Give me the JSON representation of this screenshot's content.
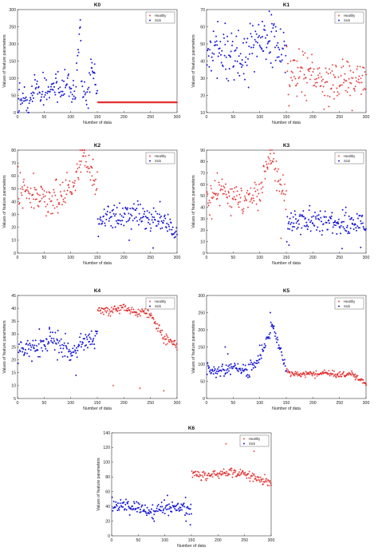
{
  "chart_data": [
    {
      "type": "scatter",
      "title": "K0",
      "xlabel": "Number of data",
      "ylabel": "Values of feature parameters",
      "xlim": [
        0,
        300
      ],
      "ylim": [
        0,
        300
      ],
      "xticks": [
        0,
        50,
        100,
        150,
        200,
        250,
        300
      ],
      "yticks": [
        0,
        50,
        100,
        150,
        200,
        250,
        300
      ],
      "legend_position": "top-right",
      "legend": [
        "Healthy",
        "Sick"
      ],
      "series": [
        {
          "name": "Sick",
          "color": "#1a1adb",
          "marker": "*",
          "x_range": [
            1,
            150
          ],
          "base": 58,
          "spread": 22,
          "outliers": [
            [
              3,
              5
            ],
            [
              28,
              50
            ],
            [
              72,
              100
            ],
            [
              105,
              80
            ],
            [
              118,
              270
            ],
            [
              140,
              130
            ],
            [
              145,
              115
            ]
          ],
          "values_sample": [
            [
              1,
              55
            ],
            [
              10,
              40
            ],
            [
              20,
              30
            ],
            [
              30,
              78
            ],
            [
              40,
              68
            ],
            [
              50,
              72
            ],
            [
              60,
              60
            ],
            [
              70,
              95
            ],
            [
              80,
              55
            ],
            [
              90,
              88
            ],
            [
              100,
              70
            ],
            [
              110,
              60
            ],
            [
              118,
              270
            ],
            [
              120,
              100
            ],
            [
              130,
              55
            ],
            [
              140,
              130
            ],
            [
              150,
              55
            ]
          ]
        },
        {
          "name": "Healthy",
          "color": "#e11a1a",
          "marker": "+",
          "x_range": [
            151,
            300
          ],
          "base": 30,
          "spread": 0,
          "outliers": [],
          "values_sample": [
            [
              151,
              30
            ],
            [
              200,
              30
            ],
            [
              250,
              30
            ],
            [
              300,
              30
            ]
          ]
        }
      ]
    },
    {
      "type": "scatter",
      "title": "K1",
      "xlabel": "Number of data",
      "ylabel": "Values of feature parameters",
      "xlim": [
        0,
        300
      ],
      "ylim": [
        10,
        70
      ],
      "xticks": [
        0,
        50,
        100,
        150,
        200,
        250,
        300
      ],
      "yticks": [
        10,
        20,
        30,
        40,
        50,
        60,
        70
      ],
      "legend_position": "top-right",
      "legend": [
        "Healthy",
        "Sick"
      ],
      "series": [
        {
          "name": "Sick",
          "color": "#1a1adb",
          "marker": "*",
          "x_range": [
            1,
            150
          ],
          "base": 46,
          "spread": 7,
          "outliers": [
            [
              20,
              30
            ],
            [
              35,
              62
            ],
            [
              105,
              63
            ],
            [
              118,
              69
            ],
            [
              122,
              67
            ],
            [
              130,
              60
            ]
          ],
          "values_sample": [
            [
              1,
              44
            ],
            [
              25,
              48
            ],
            [
              50,
              40
            ],
            [
              75,
              45
            ],
            [
              100,
              50
            ],
            [
              125,
              55
            ],
            [
              150,
              44
            ]
          ]
        },
        {
          "name": "Healthy",
          "color": "#e11a1a",
          "marker": "+",
          "x_range": [
            151,
            300
          ],
          "base": 31,
          "spread": 6,
          "outliers": [
            [
              170,
              40
            ],
            [
              185,
              20
            ],
            [
              240,
              18
            ],
            [
              270,
              20
            ]
          ],
          "values_sample": [
            [
              151,
              30
            ],
            [
              175,
              35
            ],
            [
              200,
              32
            ],
            [
              225,
              28
            ],
            [
              250,
              30
            ],
            [
              275,
              28
            ],
            [
              300,
              30
            ]
          ]
        }
      ]
    },
    {
      "type": "scatter",
      "title": "K2",
      "xlabel": "Number of data",
      "ylabel": "Values of feature parameters",
      "xlim": [
        0,
        300
      ],
      "ylim": [
        0,
        80
      ],
      "xticks": [
        0,
        50,
        100,
        150,
        200,
        250,
        300
      ],
      "yticks": [
        0,
        10,
        20,
        30,
        40,
        50,
        60,
        70,
        80
      ],
      "legend_position": "top-right",
      "legend": [
        "Healthy",
        "Sick"
      ],
      "series": [
        {
          "name": "Healthy",
          "color": "#e11a1a",
          "marker": "+",
          "x_range": [
            1,
            150
          ],
          "base": 48,
          "spread": 6,
          "outliers": [
            [
              10,
              35
            ],
            [
              30,
              62
            ],
            [
              118,
              85
            ],
            [
              125,
              78
            ],
            [
              140,
              60
            ]
          ],
          "values_sample": [
            [
              1,
              50
            ],
            [
              25,
              45
            ],
            [
              50,
              42
            ],
            [
              75,
              45
            ],
            [
              100,
              50
            ],
            [
              125,
              78
            ],
            [
              150,
              48
            ]
          ]
        },
        {
          "name": "Sick",
          "color": "#1a1adb",
          "marker": "*",
          "x_range": [
            151,
            300
          ],
          "base": 27,
          "spread": 5,
          "outliers": [
            [
              210,
              10
            ],
            [
              255,
              4
            ],
            [
              268,
              40
            ],
            [
              290,
              15
            ]
          ],
          "values_sample": [
            [
              151,
              25
            ],
            [
              175,
              28
            ],
            [
              200,
              30
            ],
            [
              225,
              30
            ],
            [
              250,
              24
            ],
            [
              275,
              25
            ],
            [
              300,
              17
            ]
          ]
        }
      ]
    },
    {
      "type": "scatter",
      "title": "K3",
      "xlabel": "Number of data",
      "ylabel": "Values of feature parameters",
      "xlim": [
        0,
        300
      ],
      "ylim": [
        0,
        90
      ],
      "xticks": [
        0,
        50,
        100,
        150,
        200,
        250,
        300
      ],
      "yticks": [
        0,
        10,
        20,
        30,
        40,
        50,
        60,
        70,
        80,
        90
      ],
      "legend_position": "top-right",
      "legend": [
        "Healthy",
        "Sick"
      ],
      "series": [
        {
          "name": "Healthy",
          "color": "#e11a1a",
          "marker": "+",
          "x_range": [
            1,
            150
          ],
          "base": 50,
          "spread": 7,
          "outliers": [
            [
              10,
              30
            ],
            [
              20,
              70
            ],
            [
              115,
              75
            ],
            [
              120,
              87
            ],
            [
              140,
              13
            ]
          ],
          "values_sample": [
            [
              1,
              45
            ],
            [
              25,
              55
            ],
            [
              50,
              48
            ],
            [
              75,
              50
            ],
            [
              100,
              52
            ],
            [
              120,
              87
            ],
            [
              150,
              47
            ]
          ]
        },
        {
          "name": "Sick",
          "color": "#1a1adb",
          "marker": "*",
          "x_range": [
            151,
            300
          ],
          "base": 26,
          "spread": 5,
          "outliers": [
            [
              155,
              7
            ],
            [
              255,
              4
            ],
            [
              262,
              40
            ],
            [
              290,
              5
            ]
          ],
          "values_sample": [
            [
              151,
              25
            ],
            [
              175,
              28
            ],
            [
              200,
              30
            ],
            [
              225,
              28
            ],
            [
              250,
              25
            ],
            [
              275,
              27
            ],
            [
              300,
              25
            ]
          ]
        }
      ]
    },
    {
      "type": "scatter",
      "title": "K4",
      "xlabel": "Number of data",
      "ylabel": "Values of feature parameters",
      "xlim": [
        0,
        300
      ],
      "ylim": [
        5,
        45
      ],
      "xticks": [
        0,
        50,
        100,
        150,
        200,
        250,
        300
      ],
      "yticks": [
        5,
        10,
        15,
        20,
        25,
        30,
        35,
        40,
        45
      ],
      "legend_position": "top-right",
      "legend": [
        "Healthy",
        "Sick"
      ],
      "series": [
        {
          "name": "Sick",
          "color": "#1a1adb",
          "marker": "*",
          "x_range": [
            1,
            150
          ],
          "base": 25,
          "spread": 2,
          "outliers": [
            [
              60,
              32
            ],
            [
              75,
              20
            ],
            [
              100,
              20
            ],
            [
              110,
              14
            ],
            [
              135,
              30
            ]
          ],
          "values_sample": [
            [
              1,
              24
            ],
            [
              25,
              24
            ],
            [
              50,
              27
            ],
            [
              75,
              27
            ],
            [
              100,
              23
            ],
            [
              125,
              28
            ],
            [
              150,
              28
            ]
          ]
        },
        {
          "name": "Healthy",
          "color": "#e11a1a",
          "marker": "+",
          "x_range": [
            151,
            300
          ],
          "base": 39,
          "spread": 1,
          "outliers": [
            [
              180,
              10
            ],
            [
              230,
              9
            ],
            [
              275,
              8
            ],
            [
              280,
              30
            ],
            [
              295,
              26
            ]
          ],
          "values_sample": [
            [
              151,
              40
            ],
            [
              175,
              39
            ],
            [
              200,
              40
            ],
            [
              225,
              39
            ],
            [
              250,
              38
            ],
            [
              275,
              28
            ],
            [
              300,
              26
            ]
          ]
        }
      ]
    },
    {
      "type": "scatter",
      "title": "K5",
      "xlabel": "Number of data",
      "ylabel": "Values of feature parameters",
      "xlim": [
        0,
        300
      ],
      "ylim": [
        0,
        300
      ],
      "xticks": [
        0,
        50,
        100,
        150,
        200,
        250,
        300
      ],
      "yticks": [
        0,
        50,
        100,
        150,
        200,
        250,
        300
      ],
      "legend_position": "top-right",
      "legend": [
        "Healthy",
        "Sick"
      ],
      "series": [
        {
          "name": "Sick",
          "color": "#1a1adb",
          "marker": "*",
          "x_range": [
            1,
            150
          ],
          "base": 85,
          "spread": 10,
          "outliers": [
            [
              35,
              150
            ],
            [
              40,
              130
            ],
            [
              100,
              155
            ],
            [
              120,
              250
            ],
            [
              125,
              210
            ]
          ],
          "values_sample": [
            [
              1,
              85
            ],
            [
              25,
              80
            ],
            [
              50,
              90
            ],
            [
              75,
              78
            ],
            [
              100,
              120
            ],
            [
              125,
              210
            ],
            [
              150,
              80
            ]
          ]
        },
        {
          "name": "Healthy",
          "color": "#e11a1a",
          "marker": "+",
          "x_range": [
            151,
            300
          ],
          "base": 75,
          "spread": 4,
          "outliers": [
            [
              280,
              55
            ],
            [
              300,
              42
            ]
          ],
          "values_sample": [
            [
              151,
              75
            ],
            [
              175,
              70
            ],
            [
              200,
              72
            ],
            [
              225,
              75
            ],
            [
              250,
              70
            ],
            [
              275,
              72
            ],
            [
              300,
              42
            ]
          ]
        }
      ]
    },
    {
      "type": "scatter",
      "title": "K6",
      "xlabel": "Number of data",
      "ylabel": "Values of feature parameters",
      "xlim": [
        0,
        300
      ],
      "ylim": [
        0,
        140
      ],
      "xticks": [
        0,
        50,
        100,
        150,
        200,
        250,
        300
      ],
      "yticks": [
        0,
        20,
        40,
        60,
        80,
        100,
        120,
        140
      ],
      "legend_position": "top-right",
      "legend": [
        "Healthy",
        "Sick"
      ],
      "series": [
        {
          "name": "Sick",
          "color": "#1a1adb",
          "marker": "*",
          "x_range": [
            1,
            150
          ],
          "base": 38,
          "spread": 5,
          "outliers": [
            [
              80,
              20
            ],
            [
              105,
              55
            ],
            [
              140,
              20
            ],
            [
              148,
              15
            ]
          ],
          "values_sample": [
            [
              1,
              40
            ],
            [
              25,
              42
            ],
            [
              50,
              38
            ],
            [
              75,
              35
            ],
            [
              100,
              37
            ],
            [
              125,
              38
            ],
            [
              150,
              35
            ]
          ]
        },
        {
          "name": "Healthy",
          "color": "#e11a1a",
          "marker": "+",
          "x_range": [
            151,
            300
          ],
          "base": 83,
          "spread": 3,
          "outliers": [
            [
              215,
              125
            ],
            [
              268,
              115
            ],
            [
              285,
              70
            ]
          ],
          "values_sample": [
            [
              151,
              85
            ],
            [
              175,
              82
            ],
            [
              200,
              84
            ],
            [
              225,
              86
            ],
            [
              250,
              85
            ],
            [
              275,
              77
            ],
            [
              300,
              72
            ]
          ]
        }
      ]
    }
  ]
}
